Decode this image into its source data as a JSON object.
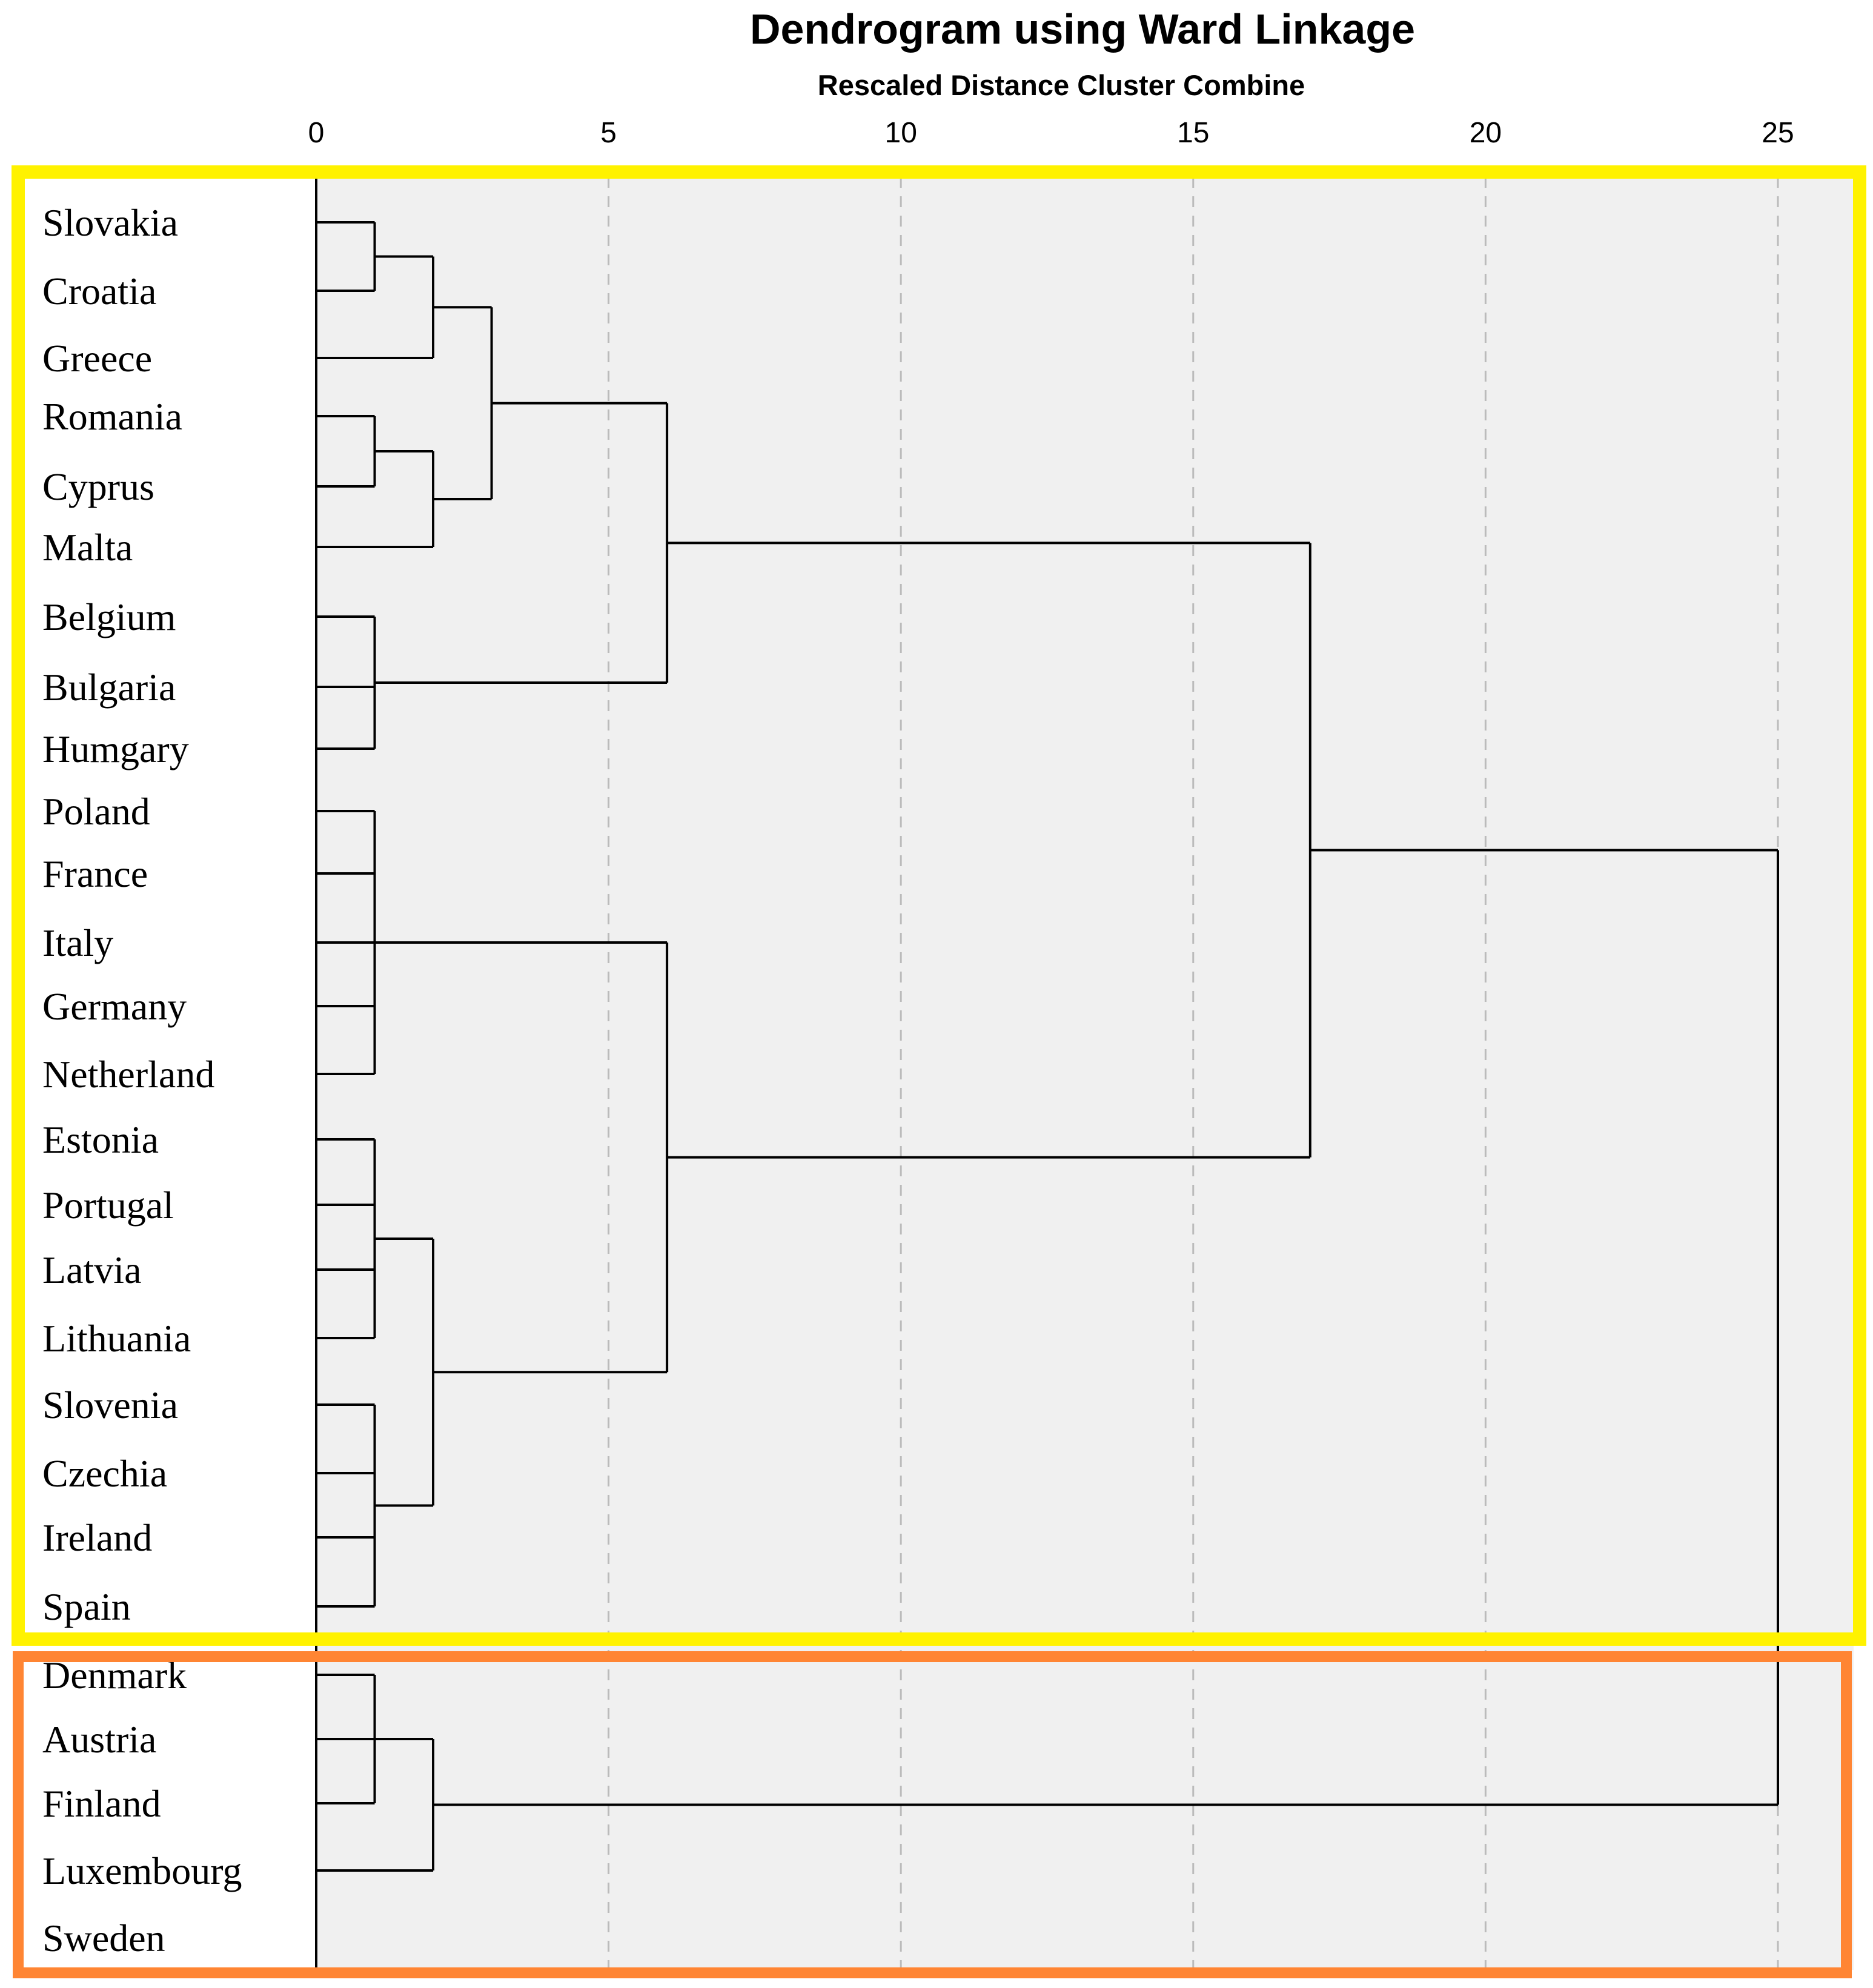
{
  "chart_data": {
    "type": "dendrogram",
    "title": "Dendrogram using Ward Linkage",
    "subtitle": "Rescaled Distance Cluster Combine",
    "xlim": [
      0,
      25
    ],
    "xticks": [
      0,
      5,
      10,
      15,
      20,
      25
    ],
    "grid": "vertical dashed",
    "leaves": [
      "Slovakia",
      "Croatia",
      "Greece",
      "Romania",
      "Cyprus",
      "Malta",
      "Belgium",
      "Bulgaria",
      "Humgary",
      "Poland",
      "France",
      "Italy",
      "Germany",
      "Netherland",
      "Estonia",
      "Portugal",
      "Latvia",
      "Lithuania",
      "Slovenia",
      "Czechia",
      "Ireland",
      "Spain",
      "Denmark",
      "Austria",
      "Finland",
      "Luxembourg",
      "Sweden"
    ],
    "merges": [
      {
        "children": [
          "Slovakia",
          "Croatia"
        ],
        "height": 1
      },
      {
        "children": [
          [
            "Slovakia",
            "Croatia"
          ],
          "Greece"
        ],
        "height": 2
      },
      {
        "children": [
          "Romania",
          "Cyprus"
        ],
        "height": 1
      },
      {
        "children": [
          [
            "Romania",
            "Cyprus"
          ],
          "Malta"
        ],
        "height": 2
      },
      {
        "children": [
          [
            [
              "Slovakia",
              "Croatia"
            ],
            "Greece"
          ],
          [
            [
              "Romania",
              "Cyprus"
            ],
            "Malta"
          ]
        ],
        "height": 3
      },
      {
        "children": [
          "Belgium",
          "Bulgaria",
          "Humgary"
        ],
        "height": 1
      },
      {
        "children": [
          [
            [
              [
                "Slovakia",
                "Croatia"
              ],
              "Greece"
            ],
            [
              [
                "Romania",
                "Cyprus"
              ],
              "Malta"
            ]
          ],
          [
            "Belgium",
            "Bulgaria",
            "Humgary"
          ]
        ],
        "height": 6
      },
      {
        "children": [
          "Poland",
          "France",
          "Italy",
          "Germany",
          "Netherland"
        ],
        "height": 1
      },
      {
        "children": [
          "Estonia",
          "Portugal",
          "Latvia",
          "Lithuania"
        ],
        "height": 1
      },
      {
        "children": [
          "Slovenia",
          "Czechia",
          "Ireland",
          "Spain"
        ],
        "height": 1
      },
      {
        "children": [
          [
            "Estonia",
            "Portugal",
            "Latvia",
            "Lithuania"
          ],
          [
            "Slovenia",
            "Czechia",
            "Ireland",
            "Spain"
          ]
        ],
        "height": 2
      },
      {
        "children": [
          [
            "Poland",
            "France",
            "Italy",
            "Germany",
            "Netherland"
          ],
          [
            [
              "Estonia",
              "Portugal",
              "Latvia",
              "Lithuania"
            ],
            [
              "Slovenia",
              "Czechia",
              "Ireland",
              "Spain"
            ]
          ]
        ],
        "height": 6
      },
      {
        "children": [
          "cluster-1-upper",
          "cluster-1-lower"
        ],
        "height": 17
      },
      {
        "children": [
          "Denmark",
          "Austria",
          "Finland"
        ],
        "height": 1
      },
      {
        "children": [
          [
            "Denmark",
            "Austria",
            "Finland"
          ],
          "Luxembourg"
        ],
        "height": 2
      },
      {
        "children": [
          "cluster-1",
          "cluster-2"
        ],
        "height": 25
      }
    ],
    "highlight_boxes": [
      {
        "color": "#FFF200",
        "from_leaf": "Slovakia",
        "to_leaf": "Spain"
      },
      {
        "color": "#FF8533",
        "from_leaf": "Denmark",
        "to_leaf": "Sweden"
      }
    ],
    "colors": {
      "plot_background": "#F0F0F0",
      "line": "#000000",
      "grid": "#BBBBBB"
    }
  }
}
